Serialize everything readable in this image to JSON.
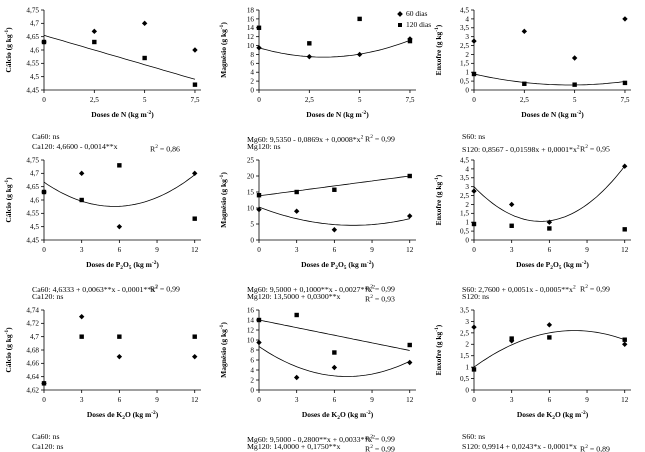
{
  "page": {
    "background": "#ffffff",
    "ink_color": "#000000"
  },
  "legend": {
    "position": "top-right-of-middle-panel",
    "items": [
      {
        "label": "60 dias",
        "marker": "diamond"
      },
      {
        "label": "120 dias",
        "marker": "square"
      }
    ]
  },
  "chart_data": [
    {
      "id": "calcio-n",
      "type": "scatter",
      "ylabel": "Cálcio (g kg^{-1})",
      "xlabel": "Doses de N (kg m^{-2})",
      "xlim": [
        0,
        7.8
      ],
      "ylim": [
        4.45,
        4.75
      ],
      "xticks": [
        [
          0,
          "0"
        ],
        [
          2.5,
          "2,5"
        ],
        [
          5,
          "5"
        ],
        [
          7.5,
          "7,5"
        ]
      ],
      "yticks": [
        [
          4.45,
          "4,45"
        ],
        [
          4.5,
          "4,5"
        ],
        [
          4.55,
          "4,55"
        ],
        [
          4.6,
          "4,6"
        ],
        [
          4.65,
          "4,65"
        ],
        [
          4.7,
          "4,7"
        ],
        [
          4.75,
          "4,75"
        ]
      ],
      "series": [
        {
          "name": "60 dias",
          "marker": "diamond",
          "points": [
            [
              0,
              4.63
            ],
            [
              2.5,
              4.67
            ],
            [
              5,
              4.7
            ],
            [
              7.5,
              4.6
            ]
          ]
        },
        {
          "name": "120 dias",
          "marker": "square",
          "points": [
            [
              0,
              4.63
            ],
            [
              2.5,
              4.63
            ],
            [
              5,
              4.57
            ],
            [
              7.5,
              4.47
            ]
          ]
        }
      ],
      "trend": [
        {
          "coef": [
            4.655,
            -0.022
          ],
          "range": [
            0,
            7.5
          ]
        }
      ],
      "equations": [
        {
          "text": "Ca60: ns",
          "r2": ""
        },
        {
          "text": "Ca120: 4,6600 - 0,0014**x",
          "r2": "R^{2} = 0,86"
        }
      ]
    },
    {
      "id": "magnesio-n",
      "type": "scatter",
      "ylabel": "Magnésio (g kg^{-1})",
      "xlabel": "Doses de N (kg m^{-2})",
      "xlim": [
        0,
        7.8
      ],
      "ylim": [
        0,
        18
      ],
      "xticks": [
        [
          0,
          "0"
        ],
        [
          2.5,
          "2,5"
        ],
        [
          5,
          "5"
        ],
        [
          7.5,
          "7,5"
        ]
      ],
      "yticks": [
        [
          0,
          "0"
        ],
        [
          2,
          "2"
        ],
        [
          4,
          "4"
        ],
        [
          6,
          "6"
        ],
        [
          8,
          "8"
        ],
        [
          10,
          "10"
        ],
        [
          12,
          "12"
        ],
        [
          14,
          "14"
        ],
        [
          16,
          "16"
        ],
        [
          18,
          "18"
        ]
      ],
      "series": [
        {
          "name": "60 dias",
          "marker": "diamond",
          "points": [
            [
              0,
              9.5
            ],
            [
              2.5,
              7.5
            ],
            [
              5,
              8
            ],
            [
              7.5,
              11.5
            ]
          ]
        },
        {
          "name": "120 dias",
          "marker": "square",
          "points": [
            [
              0,
              14
            ],
            [
              2.5,
              10.5
            ],
            [
              5,
              16
            ],
            [
              7.5,
              11
            ]
          ]
        }
      ],
      "trend": [
        {
          "coef": [
            9.5,
            -1.312,
            0.205
          ],
          "range": [
            0,
            7.5
          ]
        }
      ],
      "equations": [
        {
          "text": "Mg60: 9,5350 - 0,0869x + 0,0008*x^{2}",
          "r2": "R^{2} = 0,99"
        },
        {
          "text": "Mg120: ns",
          "r2": ""
        }
      ]
    },
    {
      "id": "enxofre-n",
      "type": "scatter",
      "ylabel": "Enxofre (g kg^{-1})",
      "xlabel": "Doses de N (kg m^{-2})",
      "xlim": [
        0,
        7.8
      ],
      "ylim": [
        0,
        4.5
      ],
      "xticks": [
        [
          0,
          "0"
        ],
        [
          2.5,
          "2,5"
        ],
        [
          5,
          "5"
        ],
        [
          7.5,
          "7,5"
        ]
      ],
      "yticks": [
        [
          0,
          "0"
        ],
        [
          0.5,
          "0,5"
        ],
        [
          1,
          "1"
        ],
        [
          1.5,
          "1,5"
        ],
        [
          2,
          "2"
        ],
        [
          2.5,
          "2,5"
        ],
        [
          3,
          "3"
        ],
        [
          3.5,
          "3,5"
        ],
        [
          4,
          "4"
        ],
        [
          4.5,
          "4,5"
        ]
      ],
      "series": [
        {
          "name": "60 dias",
          "marker": "diamond",
          "points": [
            [
              0,
              2.75
            ],
            [
              2.5,
              3.3
            ],
            [
              5,
              1.8
            ],
            [
              7.5,
              4
            ]
          ]
        },
        {
          "name": "120 dias",
          "marker": "square",
          "points": [
            [
              0,
              0.9
            ],
            [
              2.5,
              0.35
            ],
            [
              5,
              0.3
            ],
            [
              7.5,
              0.4
            ]
          ]
        }
      ],
      "trend": [
        {
          "coef": [
            0.9,
            -0.258,
            0.0269
          ],
          "range": [
            0,
            7.5
          ]
        }
      ],
      "equations": [
        {
          "text": "S60: ns",
          "r2": ""
        },
        {
          "text": "S120: 0,8567 - 0,01598x + 0,0001*x^{2}",
          "r2": "R^{2} = 0,95"
        }
      ]
    },
    {
      "id": "calcio-p2o5",
      "type": "scatter",
      "ylabel": "Cálcio (g kg^{-1})",
      "xlabel": "Doses de P_{2}O_{5} (kg m^{-2})",
      "xlim": [
        0,
        12.5
      ],
      "ylim": [
        4.45,
        4.75
      ],
      "xticks": [
        [
          0,
          "0"
        ],
        [
          3,
          "3"
        ],
        [
          6,
          "6"
        ],
        [
          9,
          "9"
        ],
        [
          12,
          "12"
        ]
      ],
      "yticks": [
        [
          4.45,
          "4,45"
        ],
        [
          4.5,
          "4,5"
        ],
        [
          4.55,
          "4,55"
        ],
        [
          4.6,
          "4,6"
        ],
        [
          4.65,
          "4,65"
        ],
        [
          4.7,
          "4,7"
        ],
        [
          4.75,
          "4,75"
        ]
      ],
      "series": [
        {
          "name": "60 dias",
          "marker": "diamond",
          "points": [
            [
              0,
              4.63
            ],
            [
              3,
              4.7
            ],
            [
              6,
              4.5
            ],
            [
              12,
              4.7
            ]
          ]
        },
        {
          "name": "120 dias",
          "marker": "square",
          "points": [
            [
              0,
              4.63
            ],
            [
              3,
              4.6
            ],
            [
              6,
              4.73
            ],
            [
              12,
              4.53
            ]
          ]
        }
      ],
      "trend": [
        {
          "coef": [
            4.667,
            -0.0325,
            0.0029
          ],
          "range": [
            0,
            12
          ]
        }
      ],
      "equations": [
        {
          "text": "Ca60: 4,6333 + 0,0063**x - 0,0001**x^{2}",
          "r2": "R^{2} = 0,99"
        },
        {
          "text": "Ca120: ns",
          "r2": ""
        }
      ]
    },
    {
      "id": "magnesio-p2o5",
      "type": "scatter",
      "ylabel": "Magnésio (g kg^{-1})",
      "xlabel": "Doses de P_{2}O_{5} (kg m^{-2})",
      "xlim": [
        0,
        12.5
      ],
      "ylim": [
        0,
        25
      ],
      "xticks": [
        [
          0,
          "0"
        ],
        [
          3,
          "3"
        ],
        [
          6,
          "6"
        ],
        [
          9,
          "9"
        ],
        [
          12,
          "12"
        ]
      ],
      "yticks": [
        [
          0,
          "0"
        ],
        [
          5,
          "5"
        ],
        [
          10,
          "10"
        ],
        [
          15,
          "15"
        ],
        [
          20,
          "20"
        ],
        [
          25,
          "25"
        ]
      ],
      "series": [
        {
          "name": "60 dias",
          "marker": "diamond",
          "points": [
            [
              0,
              9.5
            ],
            [
              3,
              9
            ],
            [
              6,
              3.2
            ],
            [
              12,
              7.5
            ]
          ]
        },
        {
          "name": "120 dias",
          "marker": "square",
          "points": [
            [
              0,
              14
            ],
            [
              3,
              15
            ],
            [
              6,
              15.7
            ],
            [
              12,
              20
            ]
          ]
        }
      ],
      "trend": [
        {
          "coef": [
            13.8,
            0.5167
          ],
          "range": [
            0,
            12
          ]
        },
        {
          "coef": [
            10.3,
            -1.52,
            0.1013
          ],
          "range": [
            0,
            12
          ]
        }
      ],
      "equations": [
        {
          "text": "Mg60: 9,5000 + 0,1000**x - 0,0027**x^{2}",
          "r2": "R^{2} = 0,99"
        },
        {
          "text": "Mg120: 13,5000 + 0,0300**x",
          "r2": "R^{2} = 0,93"
        }
      ]
    },
    {
      "id": "enxofre-p2o5",
      "type": "scatter",
      "ylabel": "Enxofre (g kg^{-1})",
      "xlabel": "Doses de P_{2}O_{5} (kg m^{-2})",
      "xlim": [
        0,
        12.5
      ],
      "ylim": [
        0,
        4.5
      ],
      "xticks": [
        [
          0,
          "0"
        ],
        [
          3,
          "3"
        ],
        [
          6,
          "6"
        ],
        [
          9,
          "9"
        ],
        [
          12,
          "12"
        ]
      ],
      "yticks": [
        [
          0,
          "0"
        ],
        [
          0.5,
          "0,5"
        ],
        [
          1,
          "1"
        ],
        [
          1.5,
          "1,5"
        ],
        [
          2,
          "2"
        ],
        [
          2.5,
          "2,5"
        ],
        [
          3,
          "3"
        ],
        [
          3.5,
          "3,5"
        ],
        [
          4,
          "4"
        ],
        [
          4.5,
          "4,5"
        ]
      ],
      "series": [
        {
          "name": "60 dias",
          "marker": "diamond",
          "points": [
            [
              0,
              2.75
            ],
            [
              3,
              2
            ],
            [
              6,
              1
            ],
            [
              12,
              4.15
            ]
          ]
        },
        {
          "name": "120 dias",
          "marker": "square",
          "points": [
            [
              0,
              0.9
            ],
            [
              3,
              0.8
            ],
            [
              6,
              0.65
            ],
            [
              12,
              0.6
            ]
          ]
        }
      ],
      "trend": [
        {
          "coef": [
            3.0,
            -0.736,
            0.0694
          ],
          "range": [
            0,
            12
          ]
        }
      ],
      "equations": [
        {
          "text": "S60: 2,7600 + 0,0051x - 0,0005**x^{2}",
          "r2": "R^{2} = 0,99"
        },
        {
          "text": "S120: ns",
          "r2": ""
        }
      ]
    },
    {
      "id": "calcio-k2o",
      "type": "scatter",
      "ylabel": "Cálcio (g kg^{-1})",
      "xlabel": "Doses de K_{2}O (kg m^{-2})",
      "xlim": [
        0,
        12.5
      ],
      "ylim": [
        4.62,
        4.74
      ],
      "xticks": [
        [
          0,
          "0"
        ],
        [
          3,
          "3"
        ],
        [
          6,
          "6"
        ],
        [
          9,
          "9"
        ],
        [
          12,
          "12"
        ]
      ],
      "yticks": [
        [
          4.62,
          "4,62"
        ],
        [
          4.64,
          "4,64"
        ],
        [
          4.66,
          "4,66"
        ],
        [
          4.68,
          "4,68"
        ],
        [
          4.7,
          "4,7"
        ],
        [
          4.72,
          "4,72"
        ],
        [
          4.74,
          "4,74"
        ]
      ],
      "series": [
        {
          "name": "60 dias",
          "marker": "diamond",
          "points": [
            [
              0,
              4.63
            ],
            [
              3,
              4.73
            ],
            [
              6,
              4.67
            ],
            [
              12,
              4.67
            ]
          ]
        },
        {
          "name": "120 dias",
          "marker": "square",
          "points": [
            [
              0,
              4.63
            ],
            [
              3,
              4.7
            ],
            [
              6,
              4.7
            ],
            [
              12,
              4.7
            ]
          ]
        }
      ],
      "trend": [],
      "equations": [
        {
          "text": "Ca60: ns",
          "r2": ""
        },
        {
          "text": "Ca120: ns",
          "r2": ""
        }
      ]
    },
    {
      "id": "magnesio-k2o",
      "type": "scatter",
      "ylabel": "Magnésio (g kg^{-1})",
      "xlabel": "Doses de K_{2}O (kg m^{-2})",
      "xlim": [
        0,
        12.5
      ],
      "ylim": [
        0,
        16
      ],
      "xticks": [
        [
          0,
          "0"
        ],
        [
          3,
          "3"
        ],
        [
          6,
          "6"
        ],
        [
          9,
          "9"
        ],
        [
          12,
          "12"
        ]
      ],
      "yticks": [
        [
          0,
          "0"
        ],
        [
          2,
          "2"
        ],
        [
          4,
          "4"
        ],
        [
          6,
          "6"
        ],
        [
          8,
          "8"
        ],
        [
          10,
          "10"
        ],
        [
          12,
          "12"
        ],
        [
          14,
          "14"
        ],
        [
          16,
          "16"
        ]
      ],
      "series": [
        {
          "name": "60 dias",
          "marker": "diamond",
          "points": [
            [
              0,
              9.5
            ],
            [
              3,
              2.5
            ],
            [
              6,
              4.5
            ],
            [
              12,
              5.5
            ]
          ]
        },
        {
          "name": "120 dias",
          "marker": "square",
          "points": [
            [
              0,
              14
            ],
            [
              3,
              15
            ],
            [
              6,
              7.5
            ],
            [
              12,
              9
            ]
          ]
        }
      ],
      "trend": [
        {
          "coef": [
            14.0,
            -0.508
          ],
          "range": [
            0,
            12
          ]
        },
        {
          "coef": [
            8.7,
            -1.714,
            0.1224
          ],
          "range": [
            0,
            12
          ]
        }
      ],
      "equations": [
        {
          "text": "Mg60: 9,5000 - 0,2800**x + 0,0033**x^{2}",
          "r2": "R^{2} = 0,99"
        },
        {
          "text": "Mg120: 14,0000 + 0,1750**x",
          "r2": "R^{2} = 0,99"
        }
      ]
    },
    {
      "id": "enxofre-k2o",
      "type": "scatter",
      "ylabel": "Enxofre (g kg^{-1})",
      "xlabel": "Doses de K_{2}O (kg m^{-2})",
      "xlim": [
        0,
        12.5
      ],
      "ylim": [
        0,
        3.5
      ],
      "xticks": [
        [
          0,
          "0"
        ],
        [
          3,
          "3"
        ],
        [
          6,
          "6"
        ],
        [
          9,
          "9"
        ],
        [
          12,
          "12"
        ]
      ],
      "yticks": [
        [
          0,
          "0"
        ],
        [
          0.5,
          "0,5"
        ],
        [
          1,
          "1"
        ],
        [
          1.5,
          "1,5"
        ],
        [
          2,
          "2"
        ],
        [
          2.5,
          "2,5"
        ],
        [
          3,
          "3"
        ],
        [
          3.5,
          "3,5"
        ]
      ],
      "series": [
        {
          "name": "60 dias",
          "marker": "diamond",
          "points": [
            [
              0,
              2.75
            ],
            [
              3,
              2.15
            ],
            [
              6,
              2.85
            ],
            [
              12,
              2
            ]
          ]
        },
        {
          "name": "120 dias",
          "marker": "square",
          "points": [
            [
              0,
              0.9
            ],
            [
              3,
              2.25
            ],
            [
              6,
              2.3
            ],
            [
              12,
              2.2
            ]
          ]
        }
      ],
      "trend": [
        {
          "coef": [
            1.0,
            0.4,
            -0.025
          ],
          "range": [
            0,
            12
          ]
        }
      ],
      "equations": [
        {
          "text": "S60: ns",
          "r2": ""
        },
        {
          "text": "S120: 0,9914 + 0,0243*x - 0,0001*x",
          "r2": "R^{2} = 0,89"
        }
      ]
    }
  ]
}
